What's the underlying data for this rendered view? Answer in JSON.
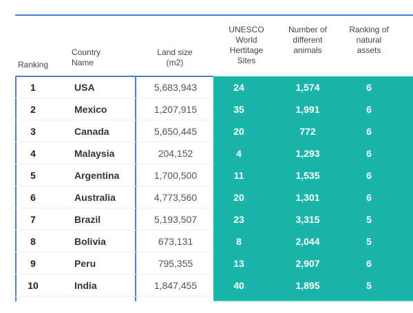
{
  "headers": {
    "ranking": "Ranking",
    "country": "Country Name",
    "land": "Land size (m2)",
    "unesco": "UNESCO World Hertitage Sites",
    "animals": "Number of different animals",
    "natural": "Ranking of natural assets"
  },
  "rows": [
    {
      "rank": "1",
      "country": "USA",
      "land": "5,683,943",
      "unesco": "24",
      "animals": "1,574",
      "natural": "6"
    },
    {
      "rank": "2",
      "country": "Mexico",
      "land": "1,207,915",
      "unesco": "35",
      "animals": "1,991",
      "natural": "6"
    },
    {
      "rank": "3",
      "country": "Canada",
      "land": "5,650,445",
      "unesco": "20",
      "animals": "772",
      "natural": "6"
    },
    {
      "rank": "4",
      "country": "Malaysia",
      "land": "204,152",
      "unesco": "4",
      "animals": "1,293",
      "natural": "6"
    },
    {
      "rank": "5",
      "country": "Argentina",
      "land": "1,700,500",
      "unesco": "11",
      "animals": "1,535",
      "natural": "6"
    },
    {
      "rank": "6",
      "country": "Australia",
      "land": "4,773,560",
      "unesco": "20",
      "animals": "1,301",
      "natural": "6"
    },
    {
      "rank": "7",
      "country": "Brazil",
      "land": "5,193,507",
      "unesco": "23",
      "animals": "3,315",
      "natural": "5"
    },
    {
      "rank": "8",
      "country": "Bolivia",
      "land": "673,131",
      "unesco": "8",
      "animals": "2,044",
      "natural": "5"
    },
    {
      "rank": "9",
      "country": "Peru",
      "land": "795,355",
      "unesco": "13",
      "animals": "2,907",
      "natural": "6"
    },
    {
      "rank": "10",
      "country": "India",
      "land": "1,847,455",
      "unesco": "40",
      "animals": "1,895",
      "natural": "5"
    }
  ],
  "colors": {
    "accent": "#4a7fd0",
    "teal": "#1ab5aa"
  }
}
